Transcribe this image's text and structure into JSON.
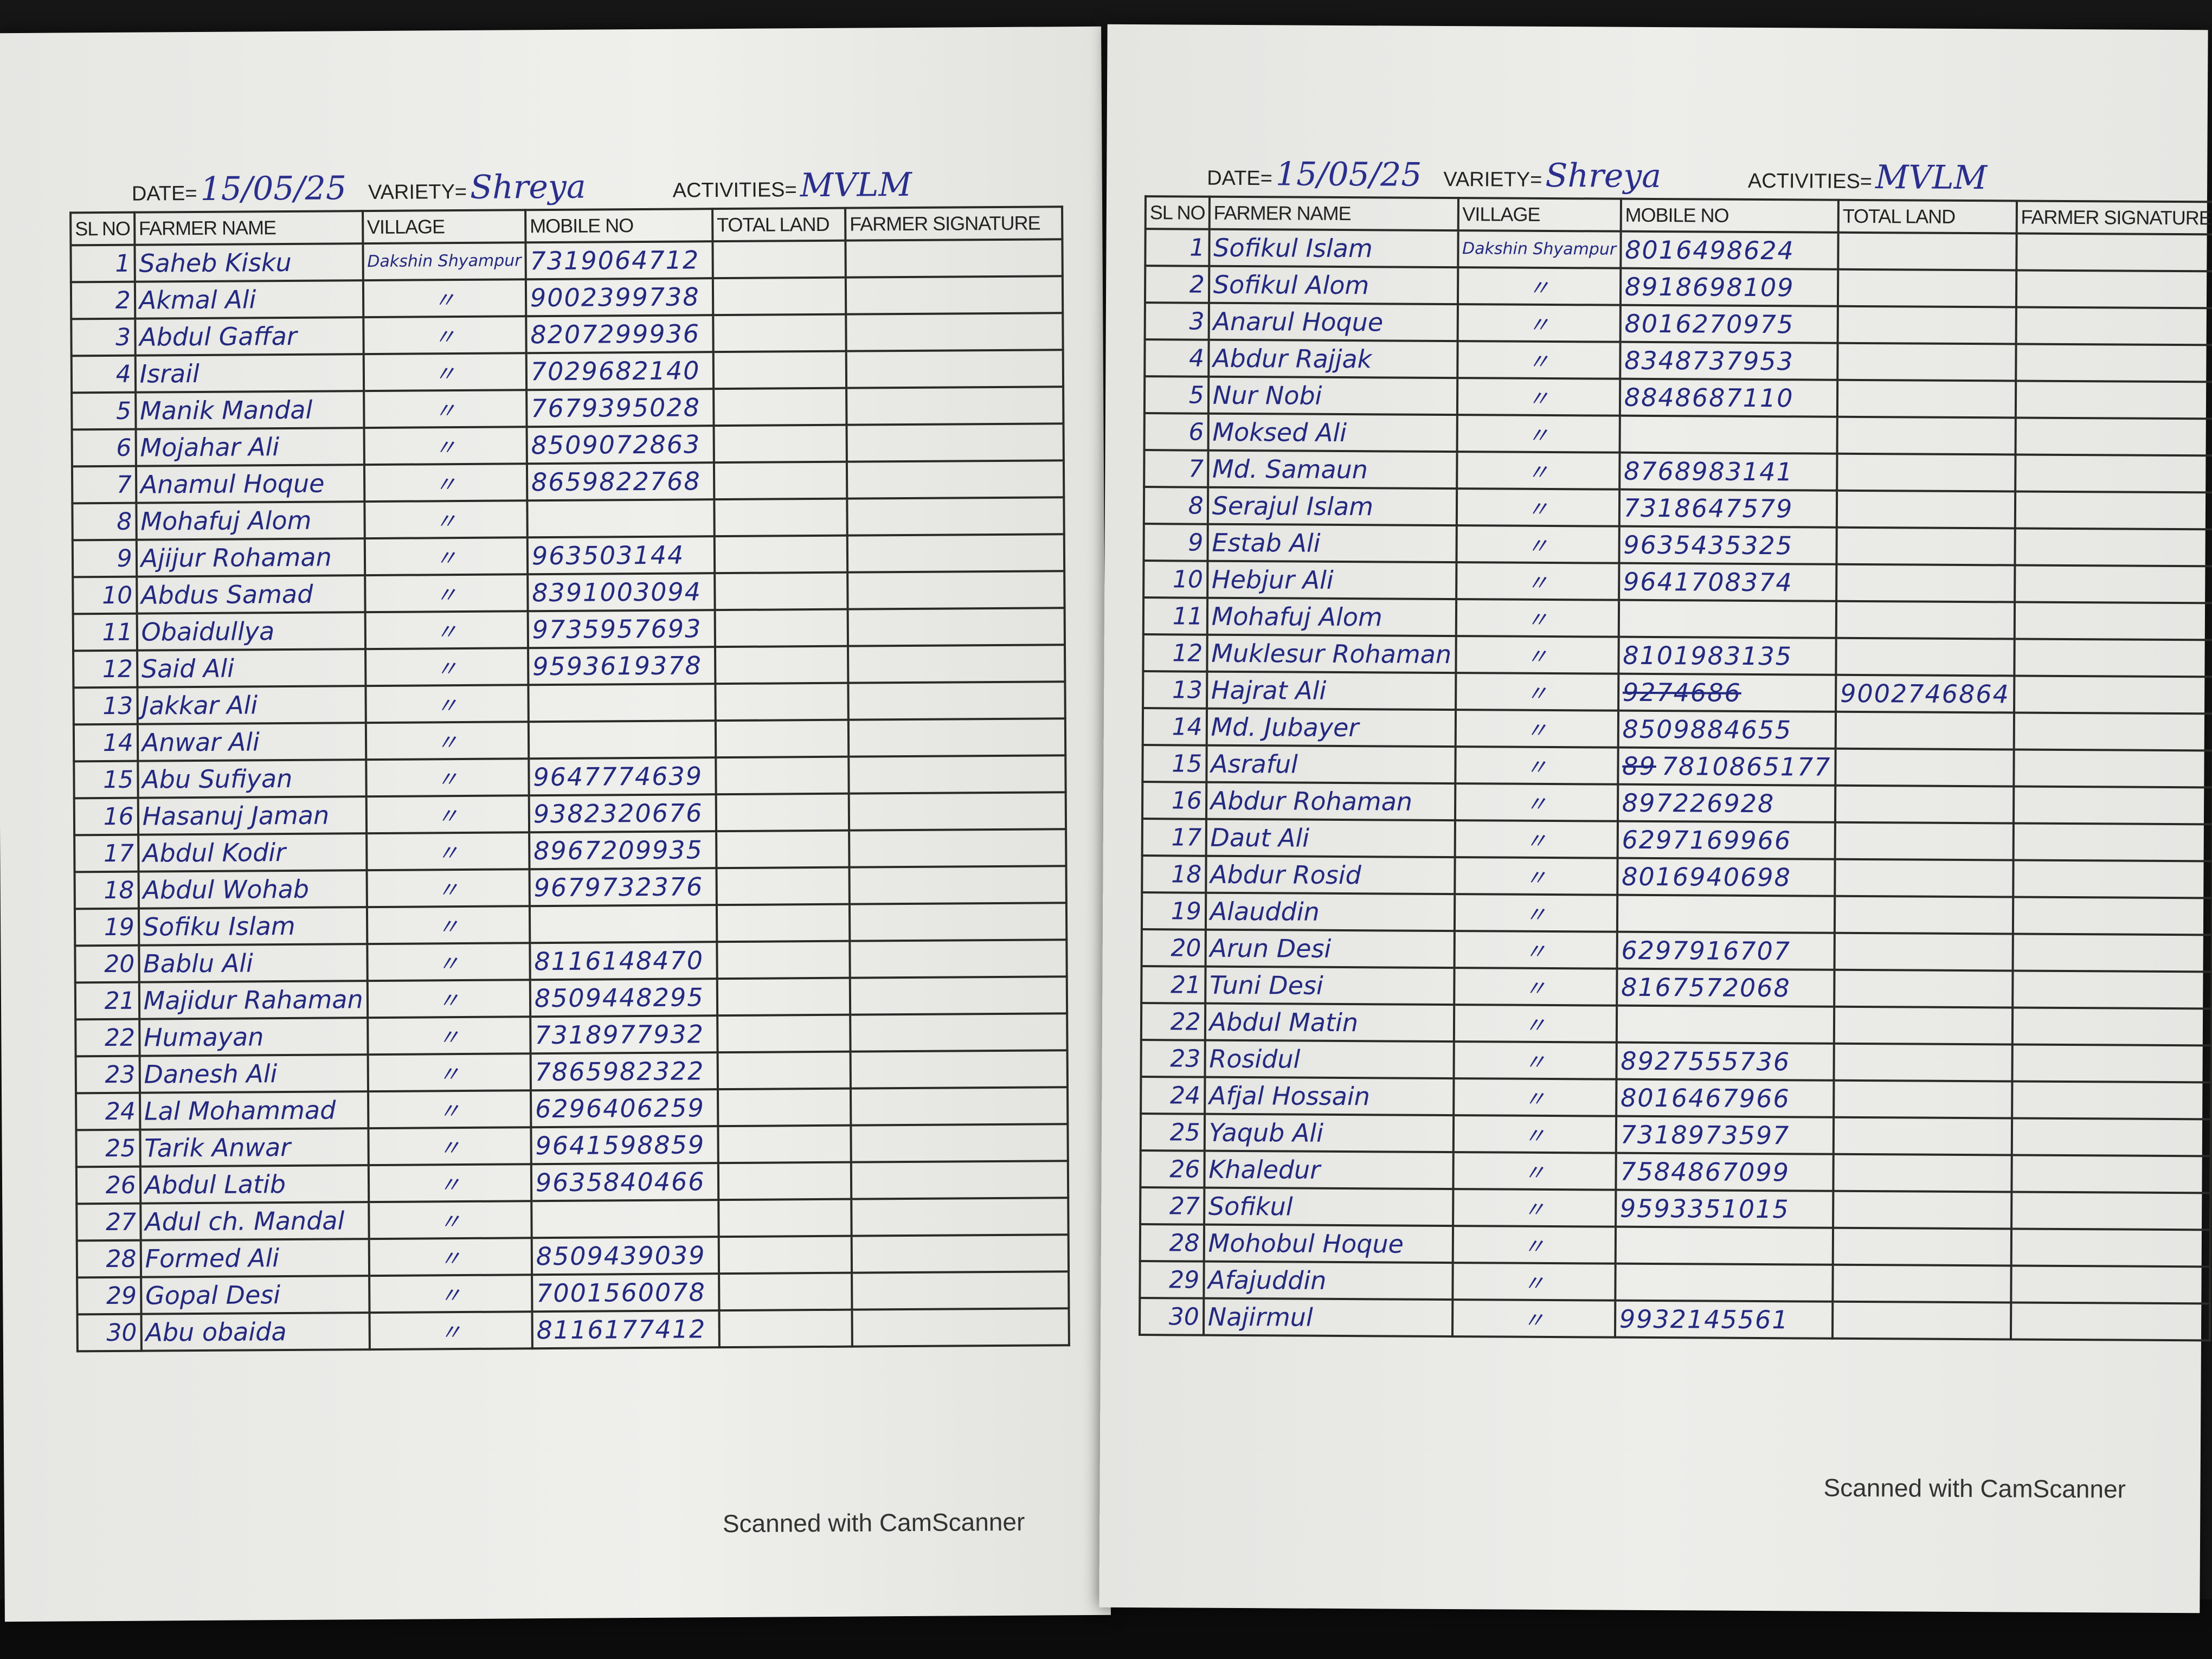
{
  "columns": [
    "SL NO",
    "FARMER NAME",
    "VILLAGE",
    "MOBILE NO",
    "TOTAL LAND",
    "FARMER SIGNATURE"
  ],
  "meta_labels": {
    "date": "DATE=",
    "variety": "VARIETY=",
    "activities": "ACTIVITIES="
  },
  "footer": "Scanned with CamScanner",
  "colors": {
    "ink": "#23297f",
    "paper": "#ebebe8",
    "background": "#161616"
  },
  "sheets": [
    {
      "date": "15/05/25",
      "variety": "Shreya",
      "activities": "MVLM",
      "rows": [
        {
          "sl": "1",
          "name": "Saheb Kisku",
          "village": "Dakshin Shyampur",
          "mobile": "7319064712"
        },
        {
          "sl": "2",
          "name": "Akmal Ali",
          "village": "〃",
          "mobile": "9002399738"
        },
        {
          "sl": "3",
          "name": "Abdul Gaffar",
          "village": "〃",
          "mobile": "8207299936"
        },
        {
          "sl": "4",
          "name": "Israil",
          "village": "〃",
          "mobile": "7029682140"
        },
        {
          "sl": "5",
          "name": "Manik Mandal",
          "village": "〃",
          "mobile": "7679395028"
        },
        {
          "sl": "6",
          "name": "Mojahar Ali",
          "village": "〃",
          "mobile": "8509072863"
        },
        {
          "sl": "7",
          "name": "Anamul Hoque",
          "village": "〃",
          "mobile": "8659822768"
        },
        {
          "sl": "8",
          "name": "Mohafuj Alom",
          "village": "〃",
          "mobile": ""
        },
        {
          "sl": "9",
          "name": "Ajijur Rohaman",
          "village": "〃",
          "mobile": "963503144"
        },
        {
          "sl": "10",
          "name": "Abdus Samad",
          "village": "〃",
          "mobile": "8391003094"
        },
        {
          "sl": "11",
          "name": "Obaidullya",
          "village": "〃",
          "mobile": "9735957693"
        },
        {
          "sl": "12",
          "name": "Said Ali",
          "village": "〃",
          "mobile": "9593619378"
        },
        {
          "sl": "13",
          "name": "Jakkar Ali",
          "village": "〃",
          "mobile": ""
        },
        {
          "sl": "14",
          "name": "Anwar Ali",
          "village": "〃",
          "mobile": ""
        },
        {
          "sl": "15",
          "name": "Abu Sufiyan",
          "village": "〃",
          "mobile": "9647774639"
        },
        {
          "sl": "16",
          "name": "Hasanuj Jaman",
          "village": "〃",
          "mobile": "9382320676"
        },
        {
          "sl": "17",
          "name": "Abdul Kodir",
          "village": "〃",
          "mobile": "8967209935"
        },
        {
          "sl": "18",
          "name": "Abdul Wohab",
          "village": "〃",
          "mobile": "9679732376"
        },
        {
          "sl": "19",
          "name": "Sofiku Islam",
          "village": "〃",
          "mobile": ""
        },
        {
          "sl": "20",
          "name": "Bablu Ali",
          "village": "〃",
          "mobile": "8116148470"
        },
        {
          "sl": "21",
          "name": "Majidur Rahaman",
          "village": "〃",
          "mobile": "8509448295"
        },
        {
          "sl": "22",
          "name": "Humayan",
          "village": "〃",
          "mobile": "7318977932"
        },
        {
          "sl": "23",
          "name": "Danesh Ali",
          "village": "〃",
          "mobile": "7865982322"
        },
        {
          "sl": "24",
          "name": "Lal Mohammad",
          "village": "〃",
          "mobile": "6296406259"
        },
        {
          "sl": "25",
          "name": "Tarik Anwar",
          "village": "〃",
          "mobile": "9641598859"
        },
        {
          "sl": "26",
          "name": "Abdul Latib",
          "village": "〃",
          "mobile": "9635840466"
        },
        {
          "sl": "27",
          "name": "Adul ch. Mandal",
          "village": "〃",
          "mobile": ""
        },
        {
          "sl": "28",
          "name": "Formed Ali",
          "village": "〃",
          "mobile": "8509439039"
        },
        {
          "sl": "29",
          "name": "Gopal Desi",
          "village": "〃",
          "mobile": "7001560078"
        },
        {
          "sl": "30",
          "name": "Abu obaida",
          "village": "〃",
          "mobile": "8116177412"
        }
      ]
    },
    {
      "date": "15/05/25",
      "variety": "Shreya",
      "activities": "MVLM",
      "rows": [
        {
          "sl": "1",
          "name": "Sofikul Islam",
          "village": "Dakshin Shyampur",
          "mobile": "8016498624"
        },
        {
          "sl": "2",
          "name": "Sofikul Alom",
          "village": "〃",
          "mobile": "8918698109"
        },
        {
          "sl": "3",
          "name": "Anarul Hoque",
          "village": "〃",
          "mobile": "8016270975"
        },
        {
          "sl": "4",
          "name": "Abdur Rajjak",
          "village": "〃",
          "mobile": "8348737953"
        },
        {
          "sl": "5",
          "name": "Nur Nobi",
          "village": "〃",
          "mobile": "8848687110"
        },
        {
          "sl": "6",
          "name": "Moksed Ali",
          "village": "〃",
          "mobile": ""
        },
        {
          "sl": "7",
          "name": "Md. Samaun",
          "village": "〃",
          "mobile": "8768983141"
        },
        {
          "sl": "8",
          "name": "Serajul Islam",
          "village": "〃",
          "mobile": "7318647579"
        },
        {
          "sl": "9",
          "name": "Estab Ali",
          "village": "〃",
          "mobile": "9635435325"
        },
        {
          "sl": "10",
          "name": "Hebjur Ali",
          "village": "〃",
          "mobile": "9641708374"
        },
        {
          "sl": "11",
          "name": "Mohafuj Alom",
          "village": "〃",
          "mobile": ""
        },
        {
          "sl": "12",
          "name": "Muklesur Rohaman",
          "village": "〃",
          "mobile": "8101983135"
        },
        {
          "sl": "13",
          "name": "Hajrat Ali",
          "village": "〃",
          "struck": "9274686",
          "mobile": "",
          "land": "9002746864"
        },
        {
          "sl": "14",
          "name": "Md. Jubayer",
          "village": "〃",
          "mobile": "8509884655"
        },
        {
          "sl": "15",
          "name": "Asraful",
          "village": "〃",
          "struck": "89",
          "mobile": "7810865177"
        },
        {
          "sl": "16",
          "name": "Abdur Rohaman",
          "village": "〃",
          "mobile": "897226928"
        },
        {
          "sl": "17",
          "name": "Daut Ali",
          "village": "〃",
          "mobile": "6297169966"
        },
        {
          "sl": "18",
          "name": "Abdur Rosid",
          "village": "〃",
          "mobile": "8016940698"
        },
        {
          "sl": "19",
          "name": "Alauddin",
          "village": "〃",
          "mobile": ""
        },
        {
          "sl": "20",
          "name": "Arun Desi",
          "village": "〃",
          "mobile": "6297916707"
        },
        {
          "sl": "21",
          "name": "Tuni Desi",
          "village": "〃",
          "mobile": "8167572068"
        },
        {
          "sl": "22",
          "name": "Abdul Matin",
          "village": "〃",
          "mobile": ""
        },
        {
          "sl": "23",
          "name": "Rosidul",
          "village": "〃",
          "mobile": "8927555736"
        },
        {
          "sl": "24",
          "name": "Afjal Hossain",
          "village": "〃",
          "mobile": "8016467966"
        },
        {
          "sl": "25",
          "name": "Yaqub Ali",
          "village": "〃",
          "mobile": "7318973597"
        },
        {
          "sl": "26",
          "name": "Khaledur",
          "village": "〃",
          "mobile": "7584867099"
        },
        {
          "sl": "27",
          "name": "Sofikul",
          "village": "〃",
          "mobile": "9593351015"
        },
        {
          "sl": "28",
          "name": "Mohobul Hoque",
          "village": "〃",
          "mobile": ""
        },
        {
          "sl": "29",
          "name": "Afajuddin",
          "village": "〃",
          "mobile": ""
        },
        {
          "sl": "30",
          "name": "Najirmul",
          "village": "〃",
          "mobile": "9932145561"
        }
      ]
    }
  ]
}
